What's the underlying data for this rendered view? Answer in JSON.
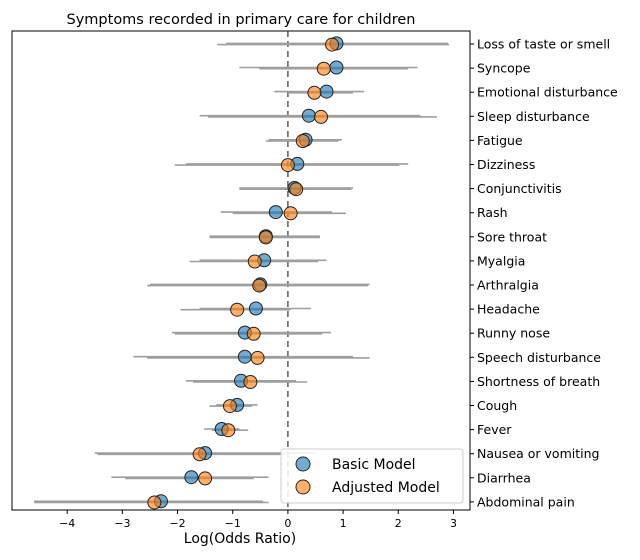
{
  "chart_data": {
    "type": "scatter",
    "title": "Symptoms recorded in primary care for children",
    "xlabel": "Log(Odds Ratio)",
    "ylabel": "",
    "xlim": [
      -5,
      3.3
    ],
    "xticks": [
      -4,
      -3,
      -2,
      -1,
      0,
      1,
      2,
      3
    ],
    "xtick_labels": [
      "−4",
      "−3",
      "−2",
      "−1",
      "0",
      "1",
      "2",
      "3"
    ],
    "reference_line_x": 0,
    "grid": false,
    "legend_position": "bottom-right",
    "categories": [
      "Loss of taste or smell",
      "Syncope",
      "Emotional disturbance",
      "Sleep disturbance",
      "Fatigue",
      "Dizziness",
      "Conjunctivitis",
      "Rash",
      "Sore throat",
      "Myalgia",
      "Arthralgia",
      "Headache",
      "Runny nose",
      "Speech disturbance",
      "Shortness of breath",
      "Cough",
      "Fever",
      "Nausea or vomiting",
      "Diarrhea",
      "Abdominal pain"
    ],
    "series": [
      {
        "name": "Basic Model",
        "color": "#1f77b4",
        "values": [
          0.88,
          0.88,
          0.7,
          0.38,
          0.32,
          0.17,
          0.12,
          -0.22,
          -0.4,
          -0.43,
          -0.5,
          -0.58,
          -0.78,
          -0.78,
          -0.85,
          -0.92,
          -1.2,
          -1.5,
          -1.75,
          -2.3
        ],
        "ci_low": [
          -1.12,
          -0.88,
          -0.25,
          -1.6,
          -0.35,
          -1.85,
          -0.88,
          -1.22,
          -1.42,
          -1.6,
          -2.5,
          -1.6,
          -2.1,
          -2.8,
          -1.85,
          -1.3,
          -1.52,
          -3.5,
          -3.2,
          -4.6
        ],
        "ci_high": [
          2.9,
          2.35,
          1.38,
          2.4,
          0.98,
          2.18,
          1.18,
          0.8,
          0.58,
          0.7,
          1.48,
          0.42,
          0.78,
          1.18,
          0.15,
          -0.55,
          -0.88,
          0.5,
          -0.35,
          -0.45
        ]
      },
      {
        "name": "Adjusted Model",
        "color": "#ff7f0e",
        "values": [
          0.8,
          0.65,
          0.48,
          0.6,
          0.27,
          0.0,
          0.15,
          0.05,
          -0.4,
          -0.6,
          -0.52,
          -0.92,
          -0.62,
          -0.55,
          -0.68,
          -1.05,
          -1.08,
          -1.6,
          -1.5,
          -2.42
        ],
        "ci_low": [
          -1.28,
          -0.52,
          0.0,
          -1.45,
          -0.4,
          -2.05,
          -0.88,
          -1.0,
          -1.42,
          -1.78,
          -2.55,
          -1.95,
          -2.05,
          -2.55,
          -1.72,
          -1.42,
          -1.38,
          -3.45,
          -2.95,
          -4.6
        ],
        "ci_high": [
          2.92,
          2.18,
          1.18,
          2.7,
          0.92,
          2.02,
          1.15,
          1.05,
          0.58,
          0.55,
          1.45,
          0.05,
          0.62,
          1.48,
          0.35,
          -0.65,
          -0.72,
          -0.08,
          -0.62,
          -0.35
        ]
      }
    ]
  }
}
